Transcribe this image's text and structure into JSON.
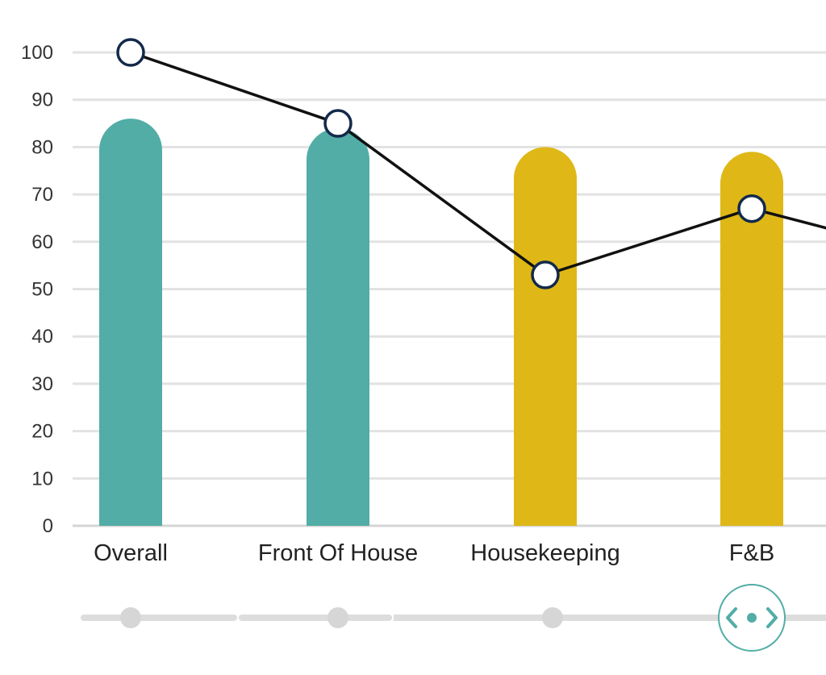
{
  "chart_data": {
    "type": "bar",
    "categories": [
      "Overall",
      "Front Of House",
      "Housekeeping",
      "F&B"
    ],
    "series": [
      {
        "type": "bar",
        "values": [
          86,
          84,
          80,
          79
        ],
        "colors": [
          "#52ADA6",
          "#52ADA6",
          "#DFB817",
          "#DFB817"
        ]
      },
      {
        "type": "line",
        "values": [
          100,
          85,
          53,
          67
        ],
        "extends_beyond_view": true,
        "next_value_trend": "down"
      }
    ],
    "ylim": [
      0,
      100
    ],
    "y_ticks": [
      "0",
      "10",
      "20",
      "30",
      "40",
      "50",
      "60",
      "70",
      "80",
      "90",
      "100"
    ],
    "grid": true,
    "colors": {
      "teal": "#52ADA6",
      "gold": "#DFB817",
      "line": "#111111",
      "marker_stroke": "#13294B",
      "grid": "#E2E2E2"
    }
  },
  "scroller": {
    "handle_icon": "chevron-left-dot-chevron-right-icon",
    "accent": "#52ADA6"
  }
}
